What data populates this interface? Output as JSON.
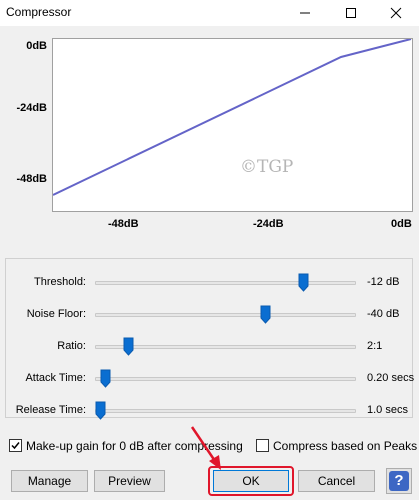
{
  "window": {
    "title": "Compressor",
    "minimize_icon": "minimize-icon",
    "maximize_icon": "maximize-icon",
    "close_icon": "close-icon"
  },
  "graph": {
    "y_labels": [
      "0dB",
      "-24dB",
      "-48dB"
    ],
    "x_labels": [
      "-48dB",
      "-24dB",
      "0dB"
    ],
    "curve_color": "#6464c8",
    "watermark": "©TGP"
  },
  "controls": [
    {
      "label": "Threshold:",
      "value": "-12 dB",
      "position": 0.81
    },
    {
      "label": "Noise Floor:",
      "value": "-40 dB",
      "position": 0.66
    },
    {
      "label": "Ratio:",
      "value": "2:1",
      "position": 0.11
    },
    {
      "label": "Attack Time:",
      "value": "0.20 secs",
      "position": 0.02
    },
    {
      "label": "Release Time:",
      "value": "1.0 secs",
      "position": 0.0
    }
  ],
  "options": {
    "makeup_gain": {
      "label": "Make-up gain for 0 dB after compressing",
      "checked": true
    },
    "peaks": {
      "label": "Compress based on Peaks",
      "checked": false
    }
  },
  "buttons": {
    "manage": "Manage",
    "preview": "Preview",
    "ok": "OK",
    "cancel": "Cancel",
    "help": "?"
  },
  "annotation": {
    "color": "#e0162b",
    "target": "OK"
  }
}
